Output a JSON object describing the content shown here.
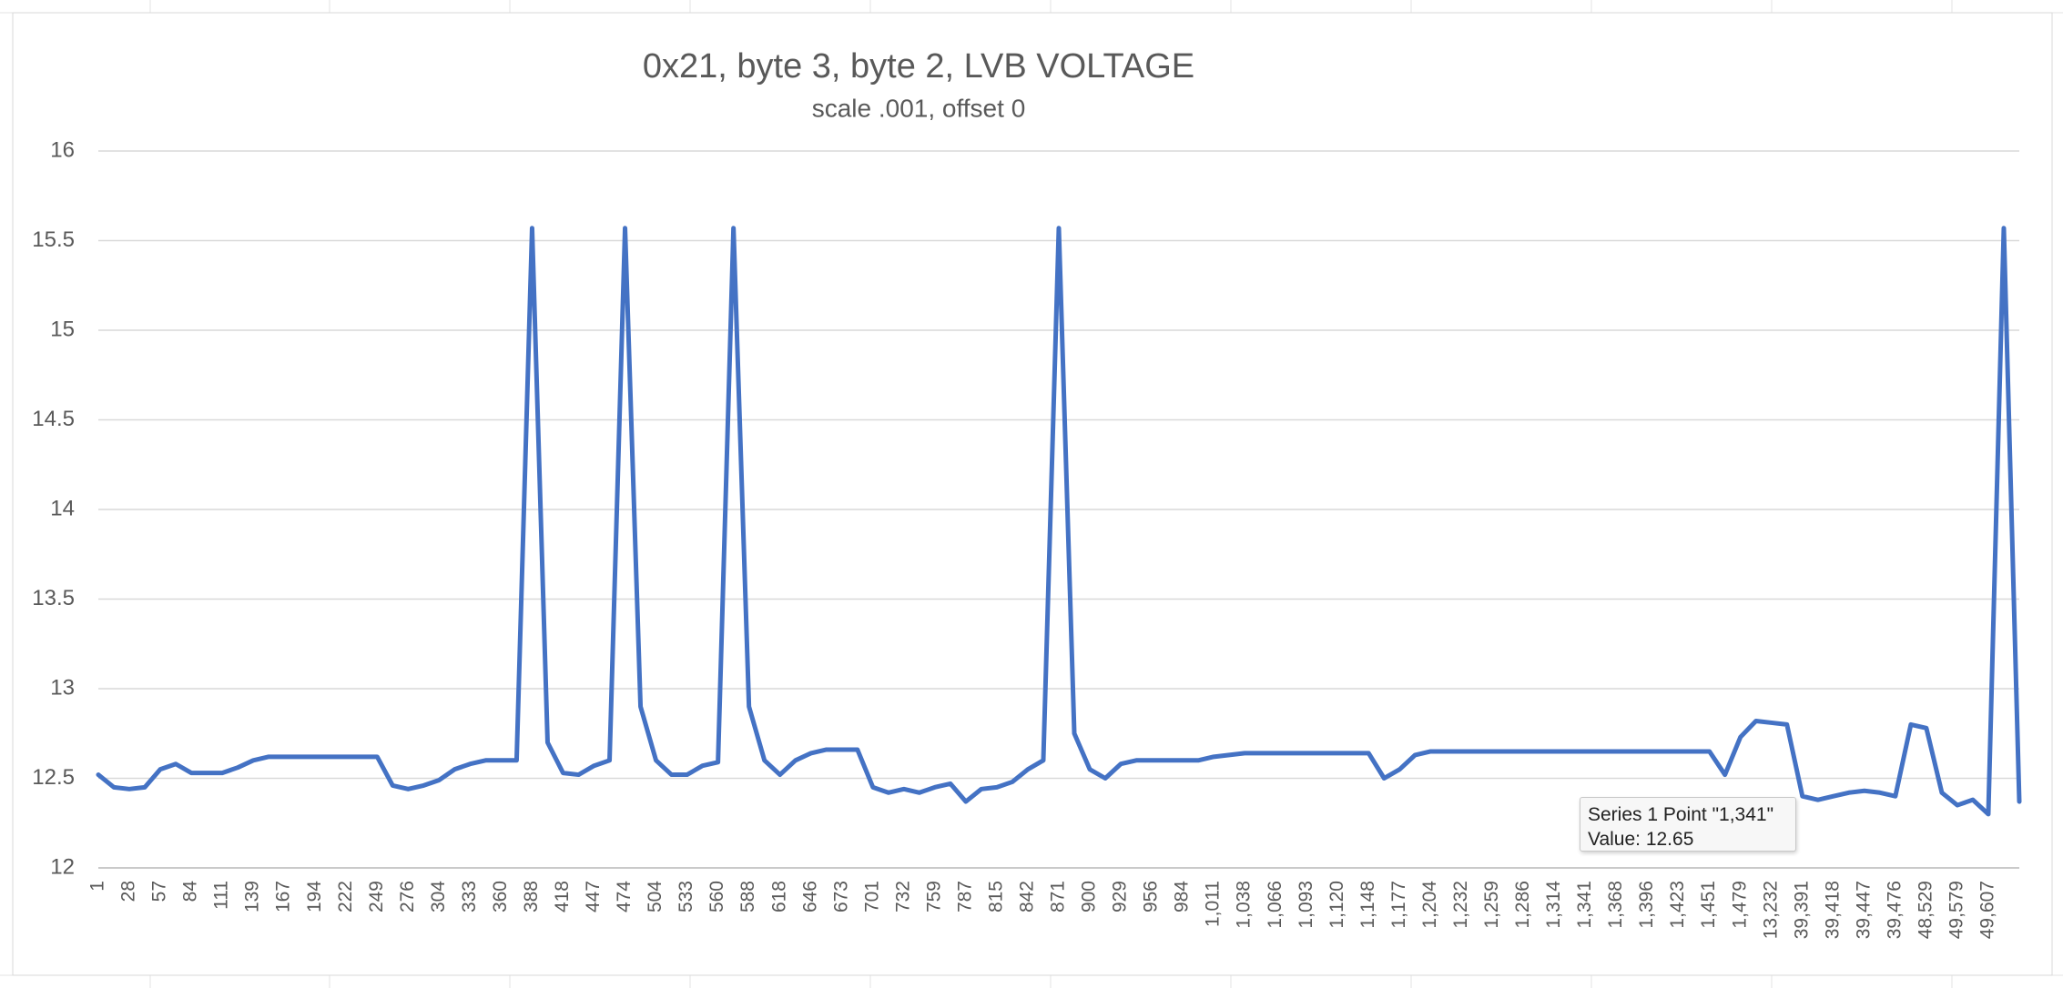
{
  "chart_data": {
    "type": "line",
    "title": "0x21, byte 3, byte 2, LVB VOLTAGE",
    "subtitle": "scale .001, offset 0",
    "categories": [
      "1",
      null,
      "28",
      null,
      "57",
      null,
      "84",
      null,
      "111",
      null,
      "139",
      null,
      "167",
      null,
      "194",
      null,
      "222",
      null,
      "249",
      null,
      "276",
      null,
      "304",
      null,
      "333",
      null,
      "360",
      null,
      "388",
      null,
      "418",
      null,
      "447",
      null,
      "474",
      null,
      "504",
      null,
      "533",
      null,
      "560",
      null,
      "588",
      null,
      "618",
      null,
      "646",
      null,
      "673",
      null,
      "701",
      null,
      "732",
      null,
      "759",
      null,
      "787",
      null,
      "815",
      null,
      "842",
      null,
      "871",
      null,
      "900",
      null,
      "929",
      null,
      "956",
      null,
      "984",
      null,
      "1,011",
      null,
      "1,038",
      null,
      "1,066",
      null,
      "1,093",
      null,
      "1,120",
      null,
      "1,148",
      null,
      "1,177",
      null,
      "1,204",
      null,
      "1,232",
      null,
      "1,259",
      null,
      "1,286",
      null,
      "1,314",
      null,
      "1,341",
      null,
      "1,368",
      null,
      "1,396",
      null,
      "1,423",
      null,
      "1,451",
      null,
      "1,479",
      null,
      "13,232",
      null,
      "39,391",
      null,
      "39,418",
      null,
      "39,447",
      null,
      "39,476",
      null,
      "48,529",
      null,
      "49,579",
      null,
      "49,607",
      null,
      null
    ],
    "values": [
      12.52,
      12.45,
      12.44,
      12.45,
      12.55,
      12.58,
      12.53,
      12.53,
      12.53,
      12.56,
      12.6,
      12.62,
      12.62,
      12.62,
      12.62,
      12.62,
      12.62,
      12.62,
      12.62,
      12.46,
      12.44,
      12.46,
      12.49,
      12.55,
      12.58,
      12.6,
      12.6,
      12.6,
      15.57,
      12.7,
      12.53,
      12.52,
      12.57,
      12.6,
      15.57,
      12.9,
      12.6,
      12.52,
      12.52,
      12.57,
      12.59,
      15.57,
      12.9,
      12.6,
      12.52,
      12.6,
      12.64,
      12.66,
      12.66,
      12.66,
      12.45,
      12.42,
      12.44,
      12.42,
      12.45,
      12.47,
      12.37,
      12.44,
      12.45,
      12.48,
      12.55,
      12.6,
      15.57,
      12.75,
      12.55,
      12.5,
      12.58,
      12.6,
      12.6,
      12.6,
      12.6,
      12.6,
      12.62,
      12.63,
      12.64,
      12.64,
      12.64,
      12.64,
      12.64,
      12.64,
      12.64,
      12.64,
      12.64,
      12.5,
      12.55,
      12.63,
      12.65,
      12.65,
      12.65,
      12.65,
      12.65,
      12.65,
      12.65,
      12.65,
      12.65,
      12.65,
      12.65,
      12.65,
      12.65,
      12.65,
      12.65,
      12.65,
      12.65,
      12.65,
      12.65,
      12.52,
      12.73,
      12.82,
      12.81,
      12.8,
      12.4,
      12.38,
      12.4,
      12.42,
      12.43,
      12.42,
      12.4,
      12.8,
      12.78,
      12.42,
      12.35,
      12.38,
      12.3,
      15.57,
      12.37
    ],
    "color": "#4472c4",
    "ylim": [
      12,
      16
    ],
    "yticks": [
      12,
      12.5,
      13,
      13.5,
      14,
      14.5,
      15,
      15.5,
      16
    ],
    "grid": true,
    "tooltip": {
      "title": "Series 1 Point \"1,341\"",
      "value_label": "Value: 12.65"
    }
  }
}
